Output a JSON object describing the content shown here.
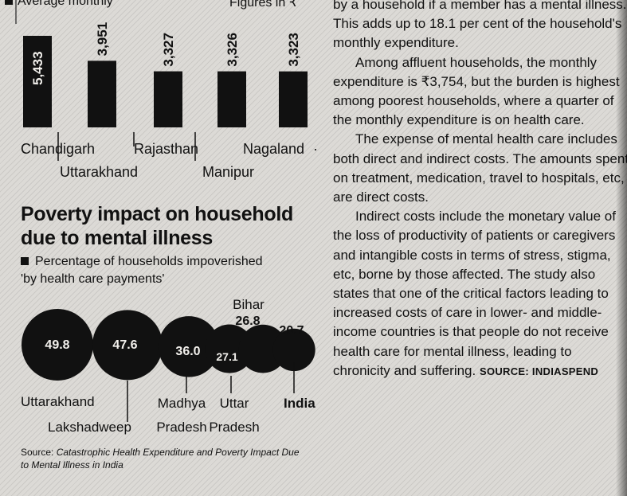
{
  "top_chart": {
    "legend_label": "Average monthly",
    "figures_label": "Figures in ₹"
  },
  "bubble_section": {
    "title_line1": "Poverty impact on household",
    "title_line2": "due to mental illness",
    "legend_line1": "Percentage of households impoverished",
    "legend_line2": "by health care payments",
    "legend_marker": "'"
  },
  "source": {
    "prefix": "Source: ",
    "title": "Catastrophic Health Expenditure and Poverty Impact Due to Mental Illness in India"
  },
  "article": {
    "paragraphs": [
      "by a household if a member has a mental illness. This adds up to 18.1 per cent of the household's monthly expenditure.",
      "Among affluent households, the monthly expenditure is ₹3,754, but the burden is highest among poorest households, where a quarter of the monthly expenditure is on health care.",
      "The expense of mental health care includes both direct and indirect costs. The amounts spent on treatment, medication, travel to hospitals, etc, are direct costs.",
      "Indirect costs include the monetary value of the loss of productivity of patients or caregivers and intangible costs in terms of stress, stigma, etc, borne by those affected. The study also states that one of the critical factors leading to increased costs of care in lower- and middle-income countries is that people do not receive health care for mental illness, leading to chronicity and suffering."
    ],
    "credit": "SOURCE: INDIASPEND"
  },
  "chart_data": [
    {
      "type": "bar",
      "categories": [
        "Chandigarh",
        "Uttarakhand",
        "Rajasthan",
        "Manipur",
        "Nagaland"
      ],
      "values": [
        5433,
        3951,
        3327,
        3326,
        3323
      ],
      "value_labels": [
        "5,433",
        "3,951",
        "3,327",
        "3,326",
        "3,323"
      ],
      "title": "Average monthly",
      "ylabel": "Figures in ₹",
      "ylim": [
        0,
        5433
      ],
      "bar_color": "#111111"
    },
    {
      "type": "scatter",
      "subtype": "bubble",
      "categories": [
        "Uttarakhand",
        "Lakshadweep",
        "Madhya Pradesh",
        "Uttar Pradesh",
        "Bihar",
        "India"
      ],
      "values": [
        49.8,
        47.6,
        36.0,
        27.1,
        26.8,
        20.7
      ],
      "value_labels": [
        "49.8",
        "47.6",
        "36.0",
        "27.1",
        "26.8",
        "20.7"
      ],
      "title": "Poverty impact on household due to mental illness",
      "ylabel": "Percentage of households impoverished by health care payments",
      "bubble_color": "#111111",
      "highlight": "India"
    }
  ]
}
